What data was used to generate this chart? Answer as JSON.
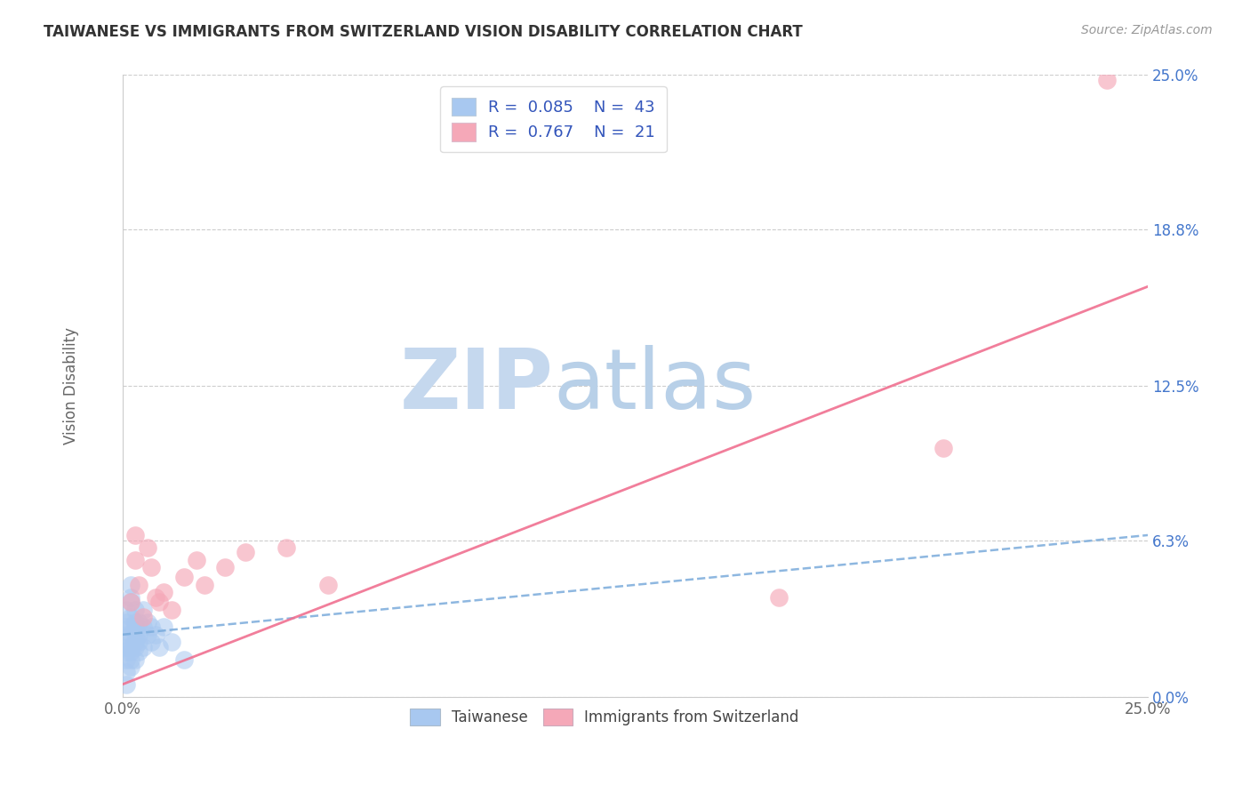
{
  "title": "TAIWANESE VS IMMIGRANTS FROM SWITZERLAND VISION DISABILITY CORRELATION CHART",
  "source": "Source: ZipAtlas.com",
  "ylabel": "Vision Disability",
  "xlim": [
    0.0,
    0.25
  ],
  "ylim": [
    0.0,
    0.25
  ],
  "xtick_positions": [
    0.0,
    0.05,
    0.1,
    0.15,
    0.2,
    0.25
  ],
  "xtick_labels_show": [
    "0.0%",
    "",
    "",
    "",
    "",
    "25.0%"
  ],
  "ytick_values": [
    0.0,
    0.063,
    0.125,
    0.188,
    0.25
  ],
  "ytick_labels": [
    "0.0%",
    "6.3%",
    "12.5%",
    "18.8%",
    "25.0%"
  ],
  "grid_color": "#c8c8c8",
  "background_color": "#ffffff",
  "taiwanese_color": "#a8c8f0",
  "swiss_color": "#f5a8b8",
  "taiwanese_R": 0.085,
  "taiwanese_N": 43,
  "swiss_R": 0.767,
  "swiss_N": 21,
  "taiwanese_line_color": "#7aabdb",
  "swiss_line_color": "#f07090",
  "legend_text_color": "#3355bb",
  "watermark_zip": "ZIP",
  "watermark_atlas": "atlas",
  "tw_line_x0": 0.0,
  "tw_line_y0": 0.025,
  "tw_line_x1": 0.25,
  "tw_line_y1": 0.065,
  "sw_line_x0": 0.0,
  "sw_line_y0": 0.005,
  "sw_line_x1": 0.25,
  "sw_line_y1": 0.165,
  "tw_x": [
    0.001,
    0.001,
    0.001,
    0.001,
    0.001,
    0.001,
    0.001,
    0.001,
    0.001,
    0.001,
    0.002,
    0.002,
    0.002,
    0.002,
    0.002,
    0.002,
    0.002,
    0.002,
    0.002,
    0.002,
    0.003,
    0.003,
    0.003,
    0.003,
    0.003,
    0.003,
    0.003,
    0.004,
    0.004,
    0.004,
    0.004,
    0.005,
    0.005,
    0.005,
    0.006,
    0.006,
    0.007,
    0.007,
    0.008,
    0.009,
    0.01,
    0.012,
    0.015
  ],
  "tw_y": [
    0.01,
    0.015,
    0.018,
    0.02,
    0.022,
    0.025,
    0.028,
    0.03,
    0.035,
    0.005,
    0.012,
    0.018,
    0.02,
    0.025,
    0.028,
    0.032,
    0.038,
    0.04,
    0.045,
    0.015,
    0.015,
    0.02,
    0.025,
    0.03,
    0.035,
    0.022,
    0.028,
    0.018,
    0.025,
    0.03,
    0.022,
    0.02,
    0.028,
    0.035,
    0.025,
    0.03,
    0.022,
    0.028,
    0.025,
    0.02,
    0.028,
    0.022,
    0.015
  ],
  "sw_x": [
    0.002,
    0.003,
    0.004,
    0.005,
    0.006,
    0.007,
    0.008,
    0.01,
    0.012,
    0.015,
    0.018,
    0.02,
    0.025,
    0.03,
    0.04,
    0.05,
    0.16,
    0.2,
    0.24,
    0.003,
    0.009
  ],
  "sw_y": [
    0.038,
    0.055,
    0.045,
    0.032,
    0.06,
    0.052,
    0.04,
    0.042,
    0.035,
    0.048,
    0.055,
    0.045,
    0.052,
    0.058,
    0.06,
    0.045,
    0.04,
    0.1,
    0.248,
    0.065,
    0.038
  ]
}
